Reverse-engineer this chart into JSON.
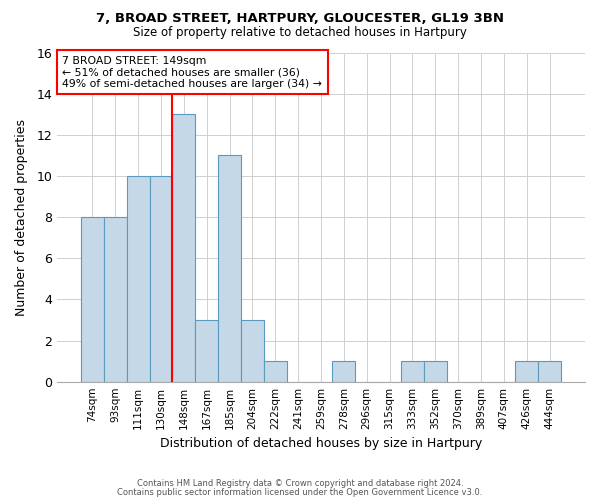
{
  "title1": "7, BROAD STREET, HARTPURY, GLOUCESTER, GL19 3BN",
  "title2": "Size of property relative to detached houses in Hartpury",
  "xlabel": "Distribution of detached houses by size in Hartpury",
  "ylabel": "Number of detached properties",
  "categories": [
    "74sqm",
    "93sqm",
    "111sqm",
    "130sqm",
    "148sqm",
    "167sqm",
    "185sqm",
    "204sqm",
    "222sqm",
    "241sqm",
    "259sqm",
    "278sqm",
    "296sqm",
    "315sqm",
    "333sqm",
    "352sqm",
    "370sqm",
    "389sqm",
    "407sqm",
    "426sqm",
    "444sqm"
  ],
  "values": [
    8,
    8,
    10,
    10,
    13,
    3,
    11,
    3,
    1,
    0,
    0,
    1,
    0,
    0,
    1,
    1,
    0,
    0,
    0,
    1,
    1
  ],
  "bar_color": "#c5d8e8",
  "bar_edge_color": "#5a9abf",
  "red_line_index": 4,
  "ylim": [
    0,
    16
  ],
  "yticks": [
    0,
    2,
    4,
    6,
    8,
    10,
    12,
    14,
    16
  ],
  "annotation_title": "7 BROAD STREET: 149sqm",
  "annotation_line1": "← 51% of detached houses are smaller (36)",
  "annotation_line2": "49% of semi-detached houses are larger (34) →",
  "footer1": "Contains HM Land Registry data © Crown copyright and database right 2024.",
  "footer2": "Contains public sector information licensed under the Open Government Licence v3.0.",
  "background_color": "#ffffff",
  "grid_color": "#d0d0d0"
}
